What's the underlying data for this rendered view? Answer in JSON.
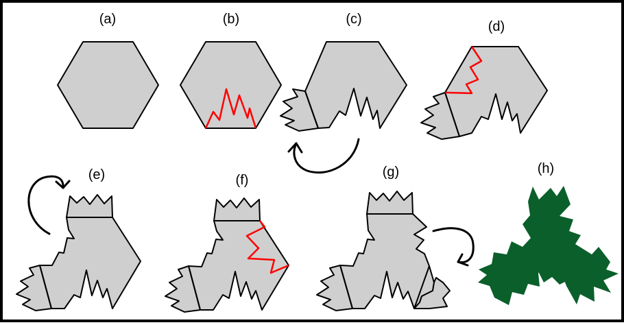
{
  "colors": {
    "shape_fill": "#cfcfcf",
    "cut_line": "#ff0000",
    "final_fill": "#0b5f2b"
  },
  "panels": [
    {
      "label": "(a)"
    },
    {
      "label": "(b)"
    },
    {
      "label": "(c)"
    },
    {
      "label": "(d)"
    },
    {
      "label": "(e)"
    },
    {
      "label": "(f)"
    },
    {
      "label": "(g)"
    },
    {
      "label": "(h)"
    }
  ]
}
